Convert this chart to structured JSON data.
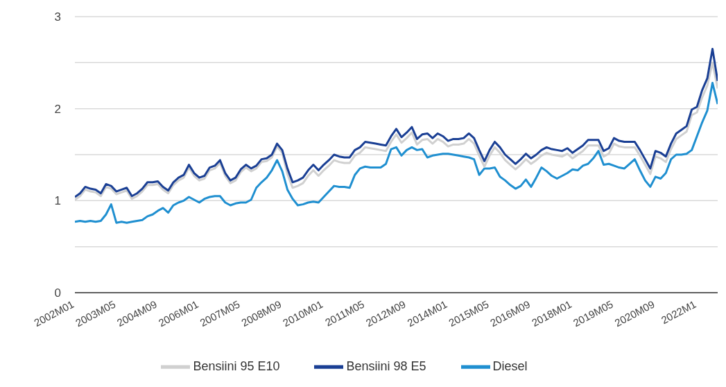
{
  "chart_data": {
    "type": "line",
    "categories": [
      "2002M01",
      null,
      null,
      null,
      null,
      null,
      null,
      null,
      "2003M05",
      null,
      null,
      null,
      null,
      null,
      null,
      null,
      "2004M09",
      null,
      null,
      null,
      null,
      null,
      null,
      null,
      "2006M01",
      null,
      null,
      null,
      null,
      null,
      null,
      null,
      "2007M05",
      null,
      null,
      null,
      null,
      null,
      null,
      null,
      "2008M09",
      null,
      null,
      null,
      null,
      null,
      null,
      null,
      "2010M01",
      null,
      null,
      null,
      null,
      null,
      null,
      null,
      "2011M05",
      null,
      null,
      null,
      null,
      null,
      null,
      null,
      "2012M09",
      null,
      null,
      null,
      null,
      null,
      null,
      null,
      "2014M01",
      null,
      null,
      null,
      null,
      null,
      null,
      null,
      "2015M05",
      null,
      null,
      null,
      null,
      null,
      null,
      null,
      "2016M09",
      null,
      null,
      null,
      null,
      null,
      null,
      null,
      "2018M01",
      null,
      null,
      null,
      null,
      null,
      null,
      null,
      "2019M05",
      null,
      null,
      null,
      null,
      null,
      null,
      null,
      "2020M09",
      null,
      null,
      null,
      null,
      null,
      null,
      null,
      "2022M1",
      null,
      null,
      null,
      null
    ],
    "series": [
      {
        "name": "Diesel",
        "color": "#1f8fd0",
        "values": [
          0.77,
          0.78,
          0.77,
          0.78,
          0.77,
          0.78,
          0.85,
          0.96,
          0.76,
          0.77,
          0.76,
          0.77,
          0.78,
          0.79,
          0.83,
          0.85,
          0.89,
          0.92,
          0.87,
          0.95,
          0.98,
          1.0,
          1.04,
          1.01,
          0.98,
          1.02,
          1.04,
          1.05,
          1.05,
          0.98,
          0.95,
          0.97,
          0.98,
          0.98,
          1.01,
          1.14,
          1.2,
          1.25,
          1.33,
          1.44,
          1.32,
          1.12,
          1.02,
          0.95,
          0.96,
          0.98,
          0.99,
          0.98,
          1.04,
          1.1,
          1.16,
          1.15,
          1.15,
          1.14,
          1.28,
          1.35,
          1.37,
          1.36,
          1.36,
          1.36,
          1.4,
          1.56,
          1.58,
          1.49,
          1.55,
          1.58,
          1.55,
          1.56,
          1.47,
          1.49,
          1.5,
          1.51,
          1.51,
          1.5,
          1.49,
          1.48,
          1.47,
          1.45,
          1.28,
          1.35,
          1.35,
          1.36,
          1.26,
          1.22,
          1.17,
          1.13,
          1.16,
          1.23,
          1.15,
          1.25,
          1.36,
          1.32,
          1.27,
          1.24,
          1.27,
          1.3,
          1.34,
          1.33,
          1.38,
          1.4,
          1.46,
          1.54,
          1.39,
          1.4,
          1.38,
          1.36,
          1.35,
          1.4,
          1.45,
          1.33,
          1.22,
          1.15,
          1.26,
          1.24,
          1.3,
          1.45,
          1.5,
          1.5,
          1.51,
          1.55,
          1.7,
          1.85,
          1.98,
          2.28,
          2.05
        ]
      },
      {
        "name": "Bensiini 95 E10",
        "color": "#d0d0d0",
        "values": [
          1.01,
          1.05,
          1.12,
          1.1,
          1.09,
          1.05,
          1.15,
          1.13,
          1.07,
          1.09,
          1.11,
          1.02,
          1.05,
          1.1,
          1.17,
          1.17,
          1.18,
          1.12,
          1.08,
          1.17,
          1.22,
          1.25,
          1.36,
          1.27,
          1.22,
          1.24,
          1.33,
          1.35,
          1.41,
          1.27,
          1.19,
          1.22,
          1.31,
          1.36,
          1.32,
          1.35,
          1.42,
          1.43,
          1.47,
          1.59,
          1.52,
          1.29,
          1.14,
          1.16,
          1.19,
          1.27,
          1.33,
          1.27,
          1.33,
          1.38,
          1.44,
          1.42,
          1.41,
          1.41,
          1.49,
          1.52,
          1.58,
          1.57,
          1.56,
          1.55,
          1.54,
          1.64,
          1.72,
          1.63,
          1.68,
          1.74,
          1.61,
          1.66,
          1.67,
          1.62,
          1.67,
          1.64,
          1.59,
          1.61,
          1.61,
          1.62,
          1.67,
          1.62,
          1.49,
          1.37,
          1.49,
          1.58,
          1.52,
          1.44,
          1.39,
          1.34,
          1.39,
          1.45,
          1.4,
          1.44,
          1.49,
          1.52,
          1.5,
          1.49,
          1.48,
          1.51,
          1.46,
          1.5,
          1.54,
          1.6,
          1.6,
          1.6,
          1.48,
          1.51,
          1.62,
          1.59,
          1.58,
          1.58,
          1.58,
          1.49,
          1.39,
          1.29,
          1.48,
          1.46,
          1.42,
          1.56,
          1.67,
          1.71,
          1.75,
          1.93,
          1.96,
          2.12,
          2.25,
          2.5,
          2.22
        ]
      },
      {
        "name": "Bensiini 98 E5",
        "color": "#1a3f94",
        "values": [
          1.04,
          1.08,
          1.15,
          1.13,
          1.12,
          1.08,
          1.18,
          1.16,
          1.1,
          1.12,
          1.14,
          1.05,
          1.08,
          1.13,
          1.2,
          1.2,
          1.21,
          1.15,
          1.11,
          1.2,
          1.25,
          1.28,
          1.39,
          1.3,
          1.25,
          1.27,
          1.36,
          1.38,
          1.44,
          1.3,
          1.22,
          1.25,
          1.34,
          1.39,
          1.35,
          1.38,
          1.45,
          1.46,
          1.5,
          1.62,
          1.55,
          1.35,
          1.2,
          1.22,
          1.25,
          1.33,
          1.39,
          1.33,
          1.39,
          1.44,
          1.5,
          1.48,
          1.47,
          1.47,
          1.55,
          1.58,
          1.64,
          1.63,
          1.62,
          1.61,
          1.6,
          1.7,
          1.78,
          1.69,
          1.74,
          1.8,
          1.67,
          1.72,
          1.73,
          1.68,
          1.73,
          1.7,
          1.65,
          1.67,
          1.67,
          1.68,
          1.73,
          1.68,
          1.55,
          1.43,
          1.55,
          1.64,
          1.58,
          1.5,
          1.45,
          1.4,
          1.45,
          1.51,
          1.46,
          1.5,
          1.55,
          1.58,
          1.56,
          1.55,
          1.54,
          1.57,
          1.52,
          1.56,
          1.6,
          1.66,
          1.66,
          1.66,
          1.54,
          1.57,
          1.68,
          1.65,
          1.64,
          1.64,
          1.64,
          1.55,
          1.45,
          1.35,
          1.54,
          1.52,
          1.48,
          1.62,
          1.73,
          1.77,
          1.81,
          1.99,
          2.02,
          2.2,
          2.33,
          2.65,
          2.3
        ]
      }
    ],
    "ylim": [
      0,
      3
    ],
    "yticks": [
      0,
      {
        "value": 0.5,
        "label": null
      },
      1,
      {
        "value": 1.5,
        "label": null
      },
      2,
      {
        "value": 2.5,
        "label": null
      },
      3
    ],
    "grid": "y",
    "legend": "bottom",
    "marker": "none",
    "line_style": "solid"
  }
}
